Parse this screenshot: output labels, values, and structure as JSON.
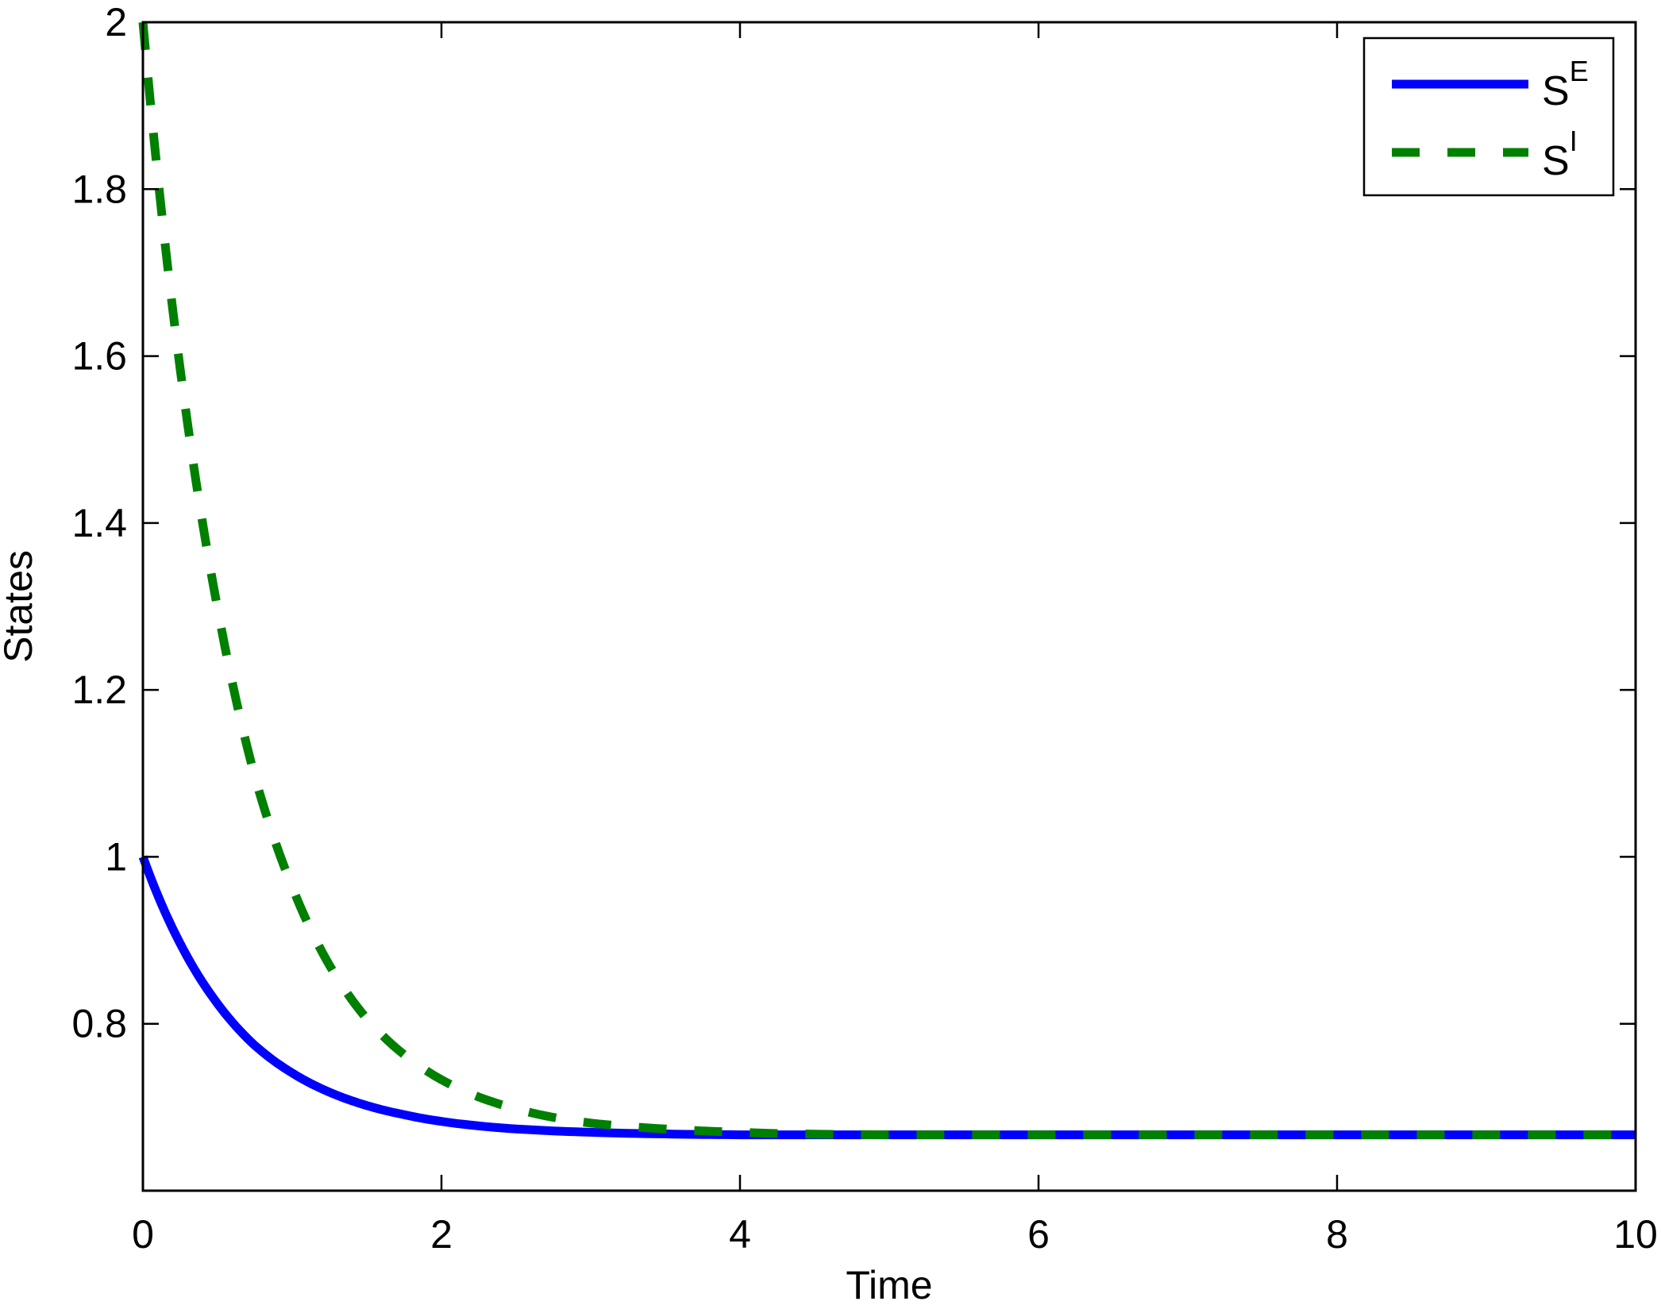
{
  "chart_data": {
    "type": "line",
    "title": "",
    "xlabel": "Time",
    "ylabel": "States",
    "xlim": [
      0,
      10
    ],
    "ylim": [
      0.6,
      2
    ],
    "xticks": [
      0,
      2,
      4,
      6,
      8,
      10
    ],
    "xtick_labels": [
      "0",
      "2",
      "4",
      "6",
      "8",
      "10"
    ],
    "yticks": [
      0.8,
      1.0,
      1.2,
      1.4,
      1.6,
      1.8,
      2.0
    ],
    "ytick_labels": [
      "0.8",
      "1",
      "1.2",
      "1.4",
      "1.6",
      "1.8",
      "2"
    ],
    "grid": false,
    "legend_position": "upper right",
    "x": [
      0,
      0.25,
      0.5,
      0.75,
      1,
      1.25,
      1.5,
      1.75,
      2,
      2.5,
      3,
      3.5,
      4,
      5,
      6,
      7,
      8,
      9,
      10
    ],
    "series": [
      {
        "name": "S^E",
        "label_base": "S",
        "label_sup": "E",
        "color": "#0000ff",
        "style": "solid",
        "values": [
          1.0,
          0.896,
          0.824,
          0.774,
          0.741,
          0.718,
          0.702,
          0.691,
          0.683,
          0.674,
          0.67,
          0.668,
          0.667,
          0.667,
          0.667,
          0.667,
          0.667,
          0.667,
          0.667
        ]
      },
      {
        "name": "S^I",
        "label_base": "S",
        "label_sup": "I",
        "color": "#008000",
        "style": "dashed",
        "values": [
          2.0,
          1.584,
          1.298,
          1.096,
          0.964,
          0.87,
          0.806,
          0.763,
          0.733,
          0.698,
          0.681,
          0.674,
          0.67,
          0.667,
          0.667,
          0.667,
          0.667,
          0.667,
          0.667
        ]
      }
    ]
  },
  "axes": {
    "xlabel": "Time",
    "ylabel": "States"
  },
  "legend": {
    "items": [
      {
        "base": "S",
        "sup": "E"
      },
      {
        "base": "S",
        "sup": "I"
      }
    ]
  }
}
